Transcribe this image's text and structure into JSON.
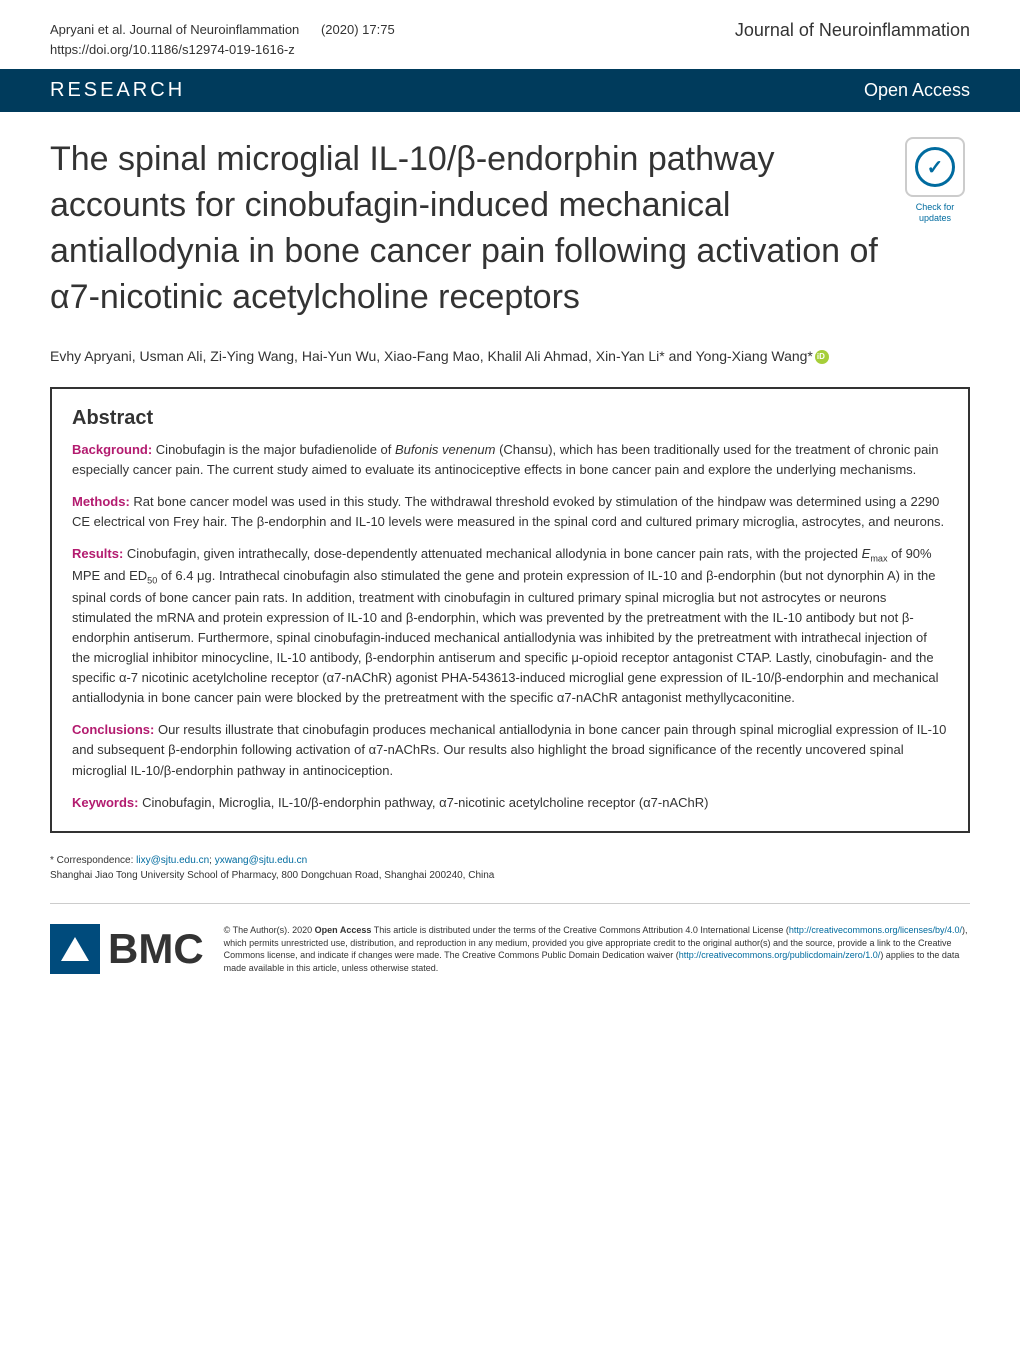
{
  "header": {
    "citation_line1": "Apryani et al. Journal of Neuroinflammation",
    "citation_issue": "(2020) 17:75",
    "doi": "https://doi.org/10.1186/s12974-019-1616-z",
    "journal_name": "Journal of Neuroinflammation"
  },
  "banner": {
    "section": "RESEARCH",
    "access": "Open Access"
  },
  "title": "The spinal microglial IL-10/β-endorphin pathway accounts for cinobufagin-induced mechanical antiallodynia in bone cancer pain following activation of α7-nicotinic acetylcholine receptors",
  "check_updates": {
    "label_line1": "Check for",
    "label_line2": "updates"
  },
  "authors": "Evhy Apryani, Usman Ali, Zi-Ying Wang, Hai-Yun Wu, Xiao-Fang Mao, Khalil Ali Ahmad, Xin-Yan Li* and Yong-Xiang Wang*",
  "abstract": {
    "heading": "Abstract",
    "background_label": "Background:",
    "background_text": "Cinobufagin is the major bufadienolide of Bufonis venenum (Chansu), which has been traditionally used for the treatment of chronic pain especially cancer pain. The current study aimed to evaluate its antinociceptive effects in bone cancer pain and explore the underlying mechanisms.",
    "methods_label": "Methods:",
    "methods_text": "Rat bone cancer model was used in this study. The withdrawal threshold evoked by stimulation of the hindpaw was determined using a 2290 CE electrical von Frey hair. The β-endorphin and IL-10 levels were measured in the spinal cord and cultured primary microglia, astrocytes, and neurons.",
    "results_label": "Results:",
    "results_text": "Cinobufagin, given intrathecally, dose-dependently attenuated mechanical allodynia in bone cancer pain rats, with the projected Emax of 90% MPE and ED50 of 6.4 μg. Intrathecal cinobufagin also stimulated the gene and protein expression of IL-10 and β-endorphin (but not dynorphin A) in the spinal cords of bone cancer pain rats. In addition, treatment with cinobufagin in cultured primary spinal microglia but not astrocytes or neurons stimulated the mRNA and protein expression of IL-10 and β-endorphin, which was prevented by the pretreatment with the IL-10 antibody but not β-endorphin antiserum. Furthermore, spinal cinobufagin-induced mechanical antiallodynia was inhibited by the pretreatment with intrathecal injection of the microglial inhibitor minocycline, IL-10 antibody, β-endorphin antiserum and specific μ-opioid receptor antagonist CTAP. Lastly, cinobufagin- and the specific α-7 nicotinic acetylcholine receptor (α7-nAChR) agonist PHA-543613-induced microglial gene expression of IL-10/β-endorphin and mechanical antiallodynia in bone cancer pain were blocked by the pretreatment with the specific α7-nAChR antagonist methyllycaconitine.",
    "conclusions_label": "Conclusions:",
    "conclusions_text": "Our results illustrate that cinobufagin produces mechanical antiallodynia in bone cancer pain through spinal microglial expression of IL-10 and subsequent β-endorphin following activation of α7-nAChRs. Our results also highlight the broad significance of the recently uncovered spinal microglial IL-10/β-endorphin pathway in antinociception.",
    "keywords_label": "Keywords:",
    "keywords_text": "Cinobufagin, Microglia, IL-10/β-endorphin pathway, α7-nicotinic acetylcholine receptor (α7-nAChR)"
  },
  "correspondence": {
    "label": "* Correspondence:",
    "email1": "lixy@sjtu.edu.cn",
    "email2": "yxwang@sjtu.edu.cn",
    "affiliation": "Shanghai Jiao Tong University School of Pharmacy, 800 Dongchuan Road, Shanghai 200240, China"
  },
  "footer": {
    "bmc_text": "BMC",
    "license": "© The Author(s). 2020 Open Access This article is distributed under the terms of the Creative Commons Attribution 4.0 International License (http://creativecommons.org/licenses/by/4.0/), which permits unrestricted use, distribution, and reproduction in any medium, provided you give appropriate credit to the original author(s) and the source, provide a link to the Creative Commons license, and indicate if changes were made. The Creative Commons Public Domain Dedication waiver (http://creativecommons.org/publicdomain/zero/1.0/) applies to the data made available in this article, unless otherwise stated.",
    "license_link1": "http://creativecommons.org/licenses/by/4.0/",
    "license_link2": "http://creativecommons.org/publicdomain/zero/1.0/"
  },
  "colors": {
    "banner_bg": "#003b5c",
    "accent_pink": "#b31b6f",
    "link_blue": "#006b9f",
    "text_dark": "#333333",
    "orcid_green": "#a6ce39",
    "bmc_blue": "#004b7c"
  }
}
